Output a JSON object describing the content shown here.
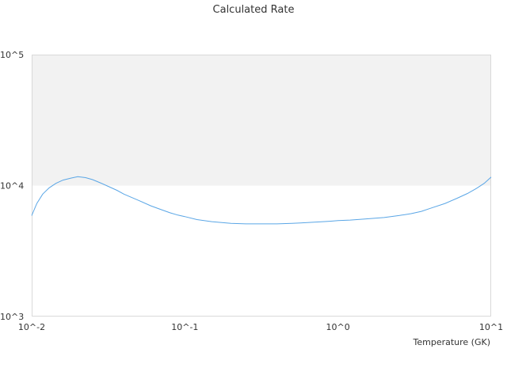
{
  "chart_data": {
    "type": "line",
    "title": "Calculated Rate",
    "xlabel": "Temperature (GK)",
    "ylabel": "",
    "x_scale": "log",
    "y_scale": "log",
    "xlim": [
      0.01,
      10
    ],
    "ylim": [
      1000,
      100000
    ],
    "x_ticks": [
      {
        "value": 0.01,
        "label": "10^-2"
      },
      {
        "value": 0.1,
        "label": "10^-1"
      },
      {
        "value": 1,
        "label": "10^0"
      },
      {
        "value": 10,
        "label": "10^1"
      }
    ],
    "y_ticks": [
      {
        "value": 1000,
        "label": "10^3"
      },
      {
        "value": 10000,
        "label": "10^4"
      },
      {
        "value": 100000,
        "label": "10^5"
      }
    ],
    "shaded_band": {
      "y_from": 10000,
      "y_to": 100000,
      "color": "#f2f2f2"
    },
    "grid": false,
    "legend": "none",
    "colors": {
      "series": "#5aa6e6",
      "band": "#f2f2f2",
      "frame": "#d9d9d9",
      "text": "#333333"
    },
    "series": [
      {
        "x": [
          0.01,
          0.0108,
          0.0118,
          0.013,
          0.0144,
          0.016,
          0.018,
          0.02,
          0.0225,
          0.025,
          0.028,
          0.032,
          0.036,
          0.04,
          0.045,
          0.05,
          0.06,
          0.07,
          0.08,
          0.09,
          0.1,
          0.12,
          0.15,
          0.2,
          0.25,
          0.3,
          0.4,
          0.5,
          0.6,
          0.7,
          0.8,
          0.9,
          1.0,
          1.2,
          1.5,
          2.0,
          2.5,
          3.0,
          3.5,
          4.0,
          5.0,
          6.0,
          7.0,
          8.0,
          9.0,
          10.0
        ],
        "values": [
          5900,
          7300,
          8600,
          9600,
          10400,
          11000,
          11400,
          11700,
          11500,
          11100,
          10500,
          9800,
          9200,
          8600,
          8100,
          7700,
          7000,
          6550,
          6200,
          5950,
          5800,
          5500,
          5300,
          5150,
          5100,
          5100,
          5100,
          5150,
          5200,
          5250,
          5300,
          5350,
          5400,
          5450,
          5550,
          5700,
          5900,
          6100,
          6350,
          6700,
          7300,
          8000,
          8700,
          9500,
          10400,
          11600
        ]
      }
    ]
  }
}
